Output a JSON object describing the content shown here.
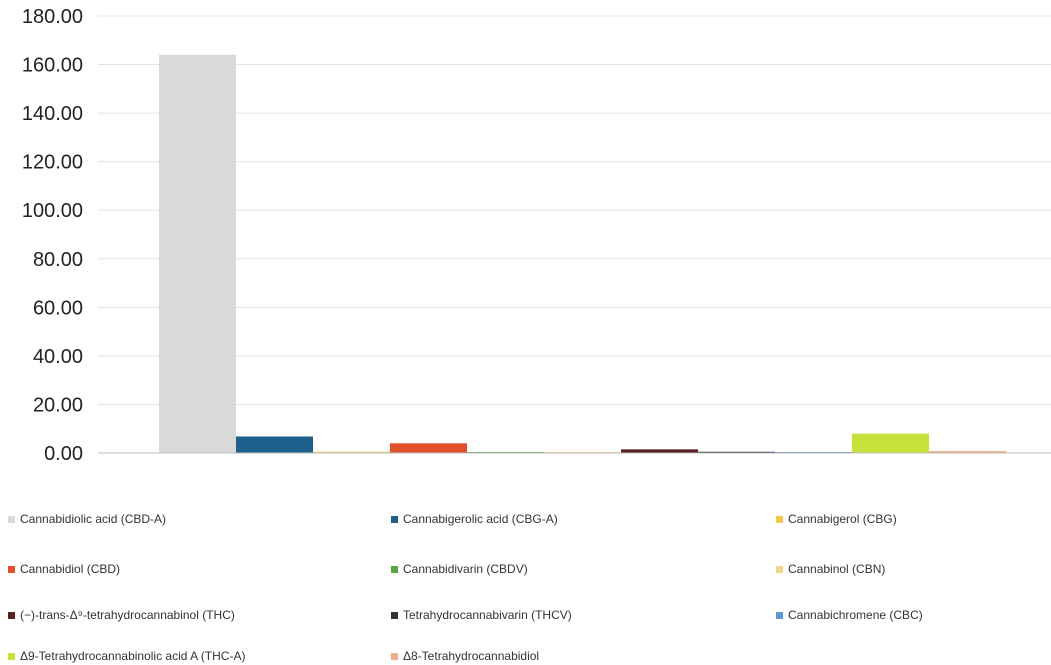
{
  "chart_data": {
    "type": "bar",
    "title": "",
    "xlabel": "",
    "ylabel": "",
    "ylim": [
      0,
      180
    ],
    "y_ticks": [
      "0.00",
      "20.00",
      "40.00",
      "60.00",
      "80.00",
      "100.00",
      "120.00",
      "140.00",
      "160.00",
      "180.00"
    ],
    "grid": true,
    "legend_position": "bottom",
    "categories": [
      ""
    ],
    "series": [
      {
        "name": "Cannabidiolic acid (CBD-A)",
        "values": [
          164.0
        ],
        "color": "#d9d9d9"
      },
      {
        "name": "Cannabigerolic acid (CBG-A)",
        "values": [
          6.8
        ],
        "color": "#1f5f8b"
      },
      {
        "name": "Cannabigerol (CBG)",
        "values": [
          0.5
        ],
        "color": "#f2c94c"
      },
      {
        "name": "Cannabidiol (CBD)",
        "values": [
          4.0
        ],
        "color": "#e0502a"
      },
      {
        "name": "Cannabidivarin (CBDV)",
        "values": [
          0.3
        ],
        "color": "#5aa843"
      },
      {
        "name": "Cannabinol (CBN)",
        "values": [
          0.3
        ],
        "color": "#f3d58a"
      },
      {
        "name": "(−)-trans-Δ⁹-tetrahydrocannabinol (THC)",
        "values": [
          1.5
        ],
        "color": "#5a1f22"
      },
      {
        "name": "Tetrahydrocannabivarin (THCV)",
        "values": [
          0.5
        ],
        "color": "#333333"
      },
      {
        "name": "Cannabichromene (CBC)",
        "values": [
          0.3
        ],
        "color": "#5b9bd5"
      },
      {
        "name": "Δ9-Tetrahydrocannabinolic acid A (THC-A)",
        "values": [
          8.0
        ],
        "color": "#c5e13a"
      },
      {
        "name": "Δ8-Tetrahydrocannabidiol",
        "values": [
          0.8
        ],
        "color": "#f2ae8c"
      }
    ]
  }
}
